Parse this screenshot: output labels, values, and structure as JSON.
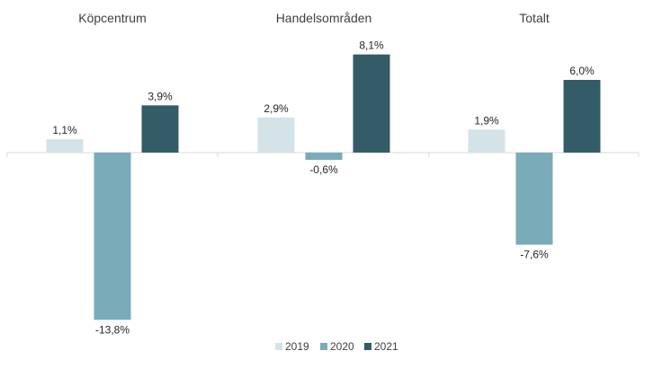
{
  "chart_data": {
    "type": "bar",
    "categories": [
      "Köpcentrum",
      "Handelsområden",
      "Totalt"
    ],
    "series": [
      {
        "name": "2019",
        "values": [
          1.1,
          2.9,
          1.9
        ],
        "labels": [
          "1,1%",
          "2,9%",
          "1,9%"
        ],
        "color": "#d3e3e8"
      },
      {
        "name": "2020",
        "values": [
          -13.8,
          -0.6,
          -7.6
        ],
        "labels": [
          "-13,8%",
          "-0,6%",
          "-7,6%"
        ],
        "color": "#7aabb8"
      },
      {
        "name": "2021",
        "values": [
          3.9,
          8.1,
          6.0
        ],
        "labels": [
          "3,9%",
          "8,1%",
          "6,0%"
        ],
        "color": "#345c66"
      }
    ],
    "unit": "%",
    "ylim": [
      -14,
      8.5
    ],
    "grid": false,
    "legend_position": "bottom-center",
    "axis_color": "#d9d9d9"
  }
}
